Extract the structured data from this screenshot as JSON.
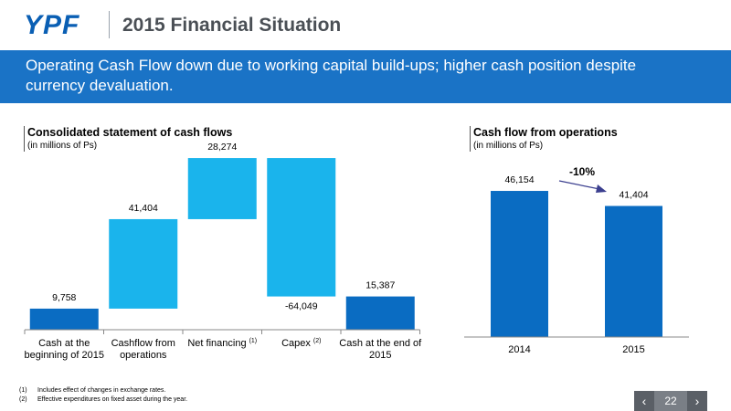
{
  "header": {
    "logo_text": "YPF",
    "title": "2015 Financial Situation"
  },
  "banner": {
    "text": "Operating Cash Flow down due to working capital build-ups; higher cash position despite currency devaluation."
  },
  "colors": {
    "dark_blue": "#0a6cc2",
    "light_blue": "#1ab4ec",
    "banner_blue": "#1a73c6",
    "arrow": "#3b3f8f"
  },
  "chart_data": [
    {
      "type": "bar",
      "subtype": "waterfall",
      "title": "Consolidated statement of cash flows",
      "subtitle": "(in millions of Ps)",
      "categories": [
        "Cash at the beginning of 2015",
        "Cashflow from operations",
        "Net financing",
        "Capex",
        "Cash at the end of 2015"
      ],
      "category_lines": [
        [
          "Cash at the",
          "beginning of 2015"
        ],
        [
          "Cashflow from",
          "operations"
        ],
        [
          "Net financing"
        ],
        [
          "Capex"
        ],
        [
          "Cash at the end of",
          "2015"
        ]
      ],
      "category_superscripts": [
        "",
        "",
        "(1)",
        "(2)",
        ""
      ],
      "values": [
        9758,
        41404,
        28274,
        -64049,
        15387
      ],
      "labels": [
        "9,758",
        "41,404",
        "28,274",
        "-64,049",
        "15,387"
      ],
      "bar_kind": [
        "total",
        "delta",
        "delta",
        "delta",
        "total"
      ]
    },
    {
      "type": "bar",
      "title": "Cash flow from operations",
      "subtitle": "(in millions of Ps)",
      "categories": [
        "2014",
        "2015"
      ],
      "values": [
        46154,
        41404
      ],
      "labels": [
        "46,154",
        "41,404"
      ],
      "change_label": "-10%"
    }
  ],
  "footnotes": [
    {
      "num": "(1)",
      "text": "Includes effect of changes in exchange rates."
    },
    {
      "num": "(2)",
      "text": "Effective expenditures on fixed asset during the year."
    }
  ],
  "pager": {
    "page": "22",
    "prev_icon": "chevron-left-icon",
    "next_icon": "chevron-right-icon"
  }
}
